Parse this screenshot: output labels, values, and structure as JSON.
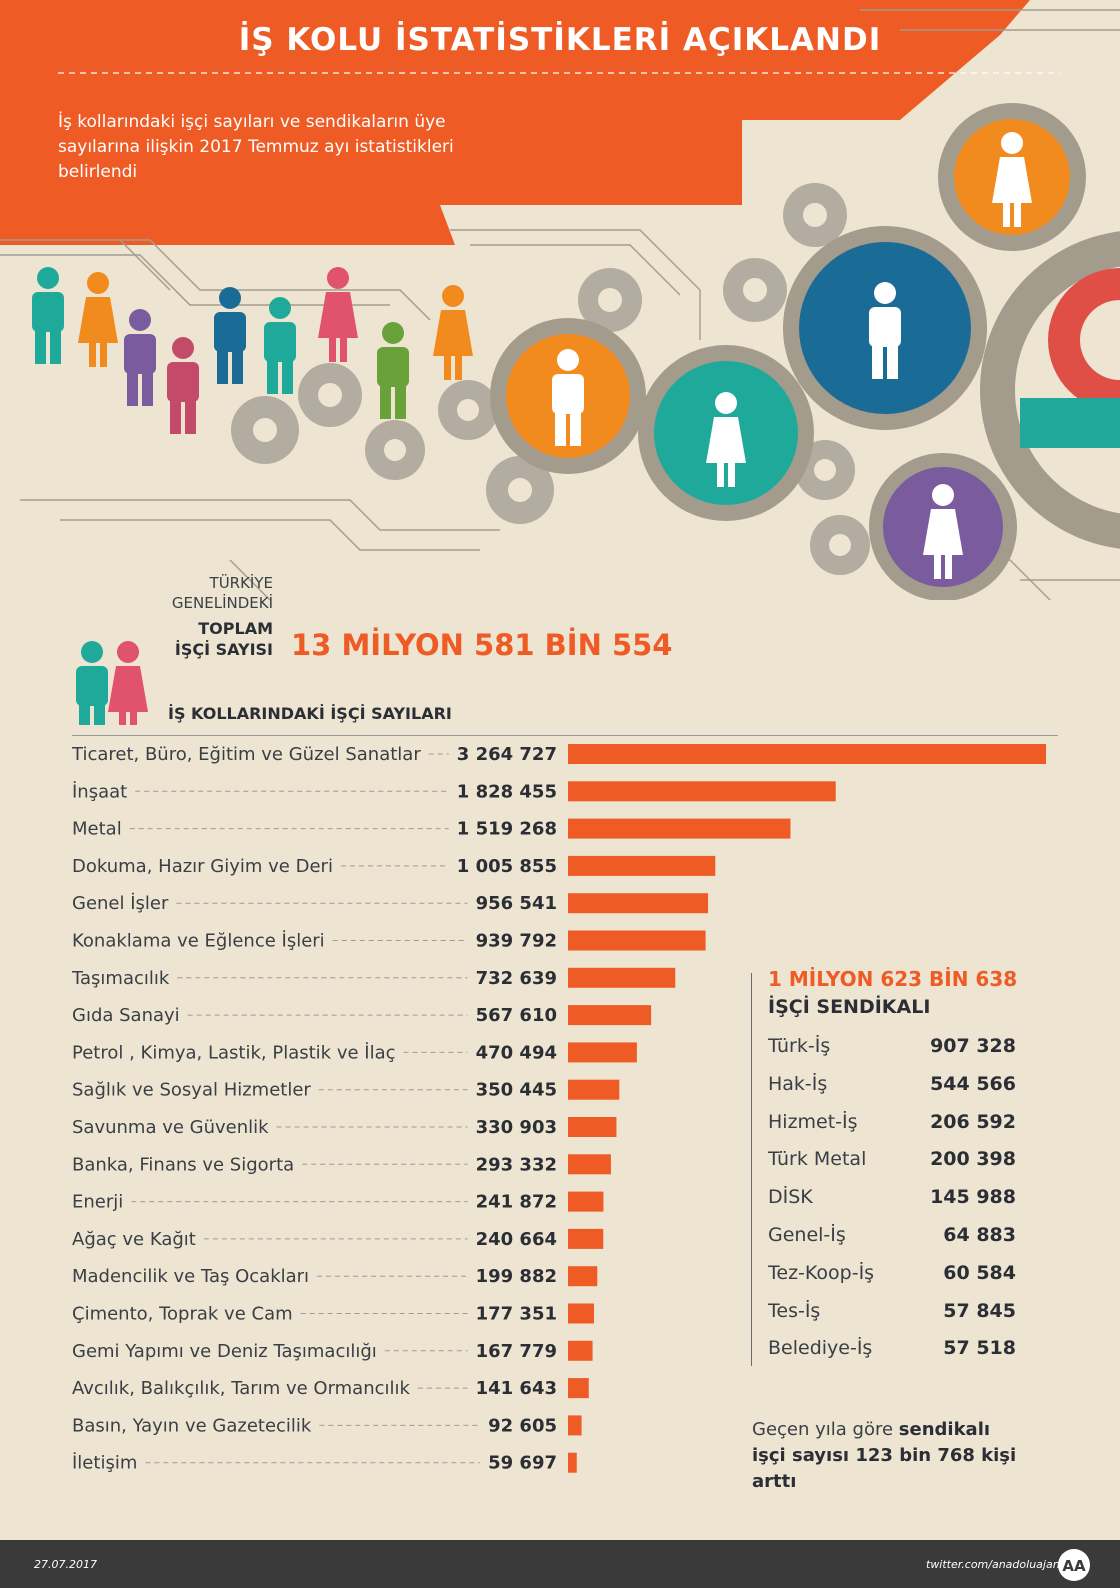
{
  "header": {
    "title": "İŞ KOLU İSTATİSTİKLERİ AÇIKLANDI",
    "subtitle": "İş kollarındaki işçi sayıları ve sendikaların üye sayılarına ilişkin 2017 Temmuz ayı istatistikleri belirlendi"
  },
  "total": {
    "label_line1": "TÜRKİYE",
    "label_line2": "GENELİNDEKİ",
    "label_line3": "TOPLAM",
    "label_line4": "İŞÇİ SAYISI",
    "value": "13 MİLYON 581 BİN 554"
  },
  "chart_data": {
    "type": "bar",
    "orientation": "horizontal",
    "title": "İŞ KOLLARINDAKİ İŞÇİ SAYILARI",
    "categories": [
      "Ticaret, Büro, Eğitim ve Güzel Sanatlar",
      "İnşaat",
      "Metal",
      "Dokuma, Hazır Giyim ve Deri",
      "Genel İşler",
      "Konaklama ve Eğlence İşleri",
      "Taşımacılık",
      "Gıda Sanayi",
      "Petrol , Kimya, Lastik, Plastik ve İlaç",
      "Sağlık ve Sosyal Hizmetler",
      "Savunma ve Güvenlik",
      "Banka, Finans ve Sigorta",
      "Enerji",
      "Ağaç ve Kağıt",
      "Madencilik ve Taş Ocakları",
      "Çimento, Toprak ve Cam",
      "Gemi Yapımı ve Deniz Taşımacılığı",
      "Avcılık, Balıkçılık, Tarım ve Ormancılık",
      "Basın, Yayın ve Gazetecilik",
      "İletişim"
    ],
    "values": [
      3264727,
      1828455,
      1519268,
      1005855,
      956541,
      939792,
      732639,
      567610,
      470494,
      350445,
      330903,
      293332,
      241872,
      240664,
      199882,
      177351,
      167779,
      141643,
      92605,
      59697
    ],
    "value_labels": [
      "3 264 727",
      "1 828 455",
      "1 519 268",
      "1 005 855",
      "956 541",
      "939 792",
      "732 639",
      "567 610",
      "470 494",
      "350 445",
      "330 903",
      "293 332",
      "241 872",
      "240 664",
      "199 882",
      "177 351",
      "167 779",
      "141 643",
      "92 605",
      "59 697"
    ],
    "xlim": [
      0,
      3264727
    ],
    "bar_color": "#ee5b25"
  },
  "unions": {
    "total": "1 MİLYON 623 BİN 638",
    "heading": "İŞÇİ SENDİKALI",
    "items": [
      {
        "name": "Türk-İş",
        "value": "907 328"
      },
      {
        "name": "Hak-İş",
        "value": "544 566"
      },
      {
        "name": "Hizmet-İş",
        "value": "206 592"
      },
      {
        "name": "Türk Metal",
        "value": "200 398"
      },
      {
        "name": "DİSK",
        "value": "145 988"
      },
      {
        "name": "Genel-İş",
        "value": "64 883"
      },
      {
        "name": "Tez-Koop-İş",
        "value": "60 584"
      },
      {
        "name": "Tes-İş",
        "value": "57 845"
      },
      {
        "name": "Belediye-İş",
        "value": "57 518"
      }
    ]
  },
  "note": {
    "prefix": "Geçen yıla göre ",
    "bold": "sendikalı işçi sayısı 123 bin 768 kişi arttı"
  },
  "footer": {
    "date": "27.07.2017",
    "twitter": "twitter.com/anadoluajansi",
    "logo_text": "AA"
  },
  "colors": {
    "orange": "#ee5b25",
    "background": "#ede4d2",
    "footer": "#3a3a3a"
  }
}
